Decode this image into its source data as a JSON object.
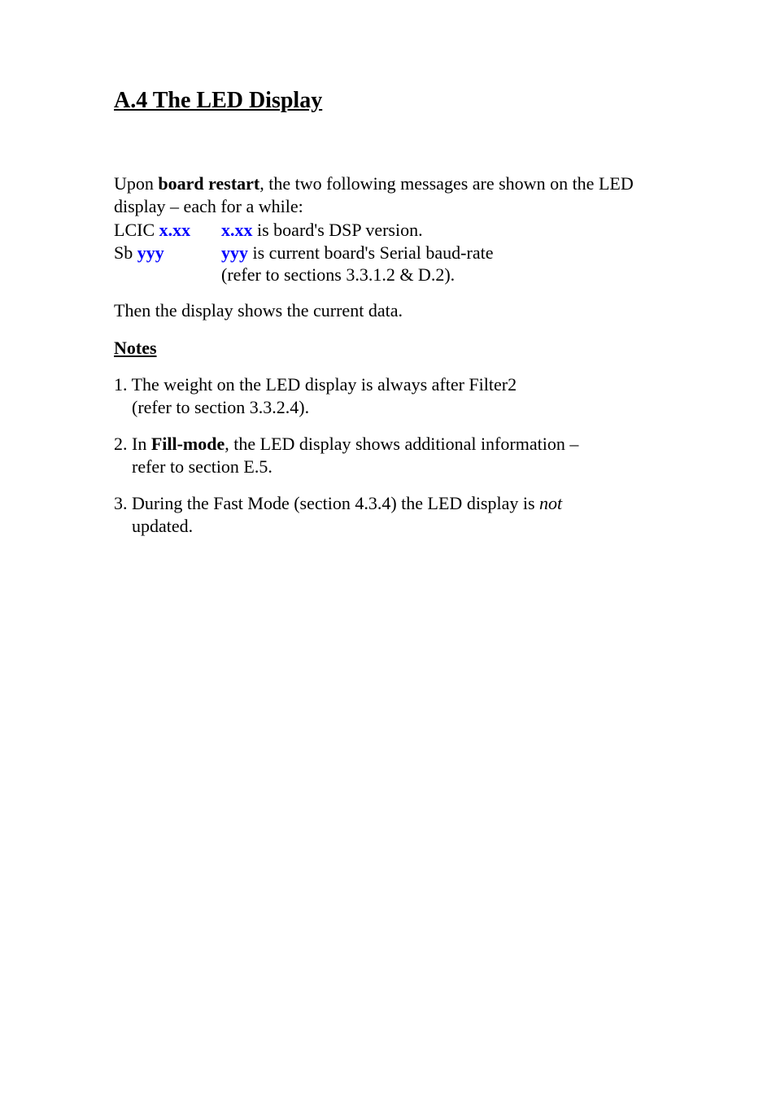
{
  "section_title": "A.4 The LED Display",
  "intro_pre": "Upon ",
  "intro_bold": "board restart",
  "intro_post": ", the two following messages are shown on the LED display – each for a while:",
  "msg1": {
    "left_prefix": "LCIC ",
    "left_var": "x.xx",
    "right_var": "x.xx",
    "right_text": " is board's DSP version."
  },
  "msg2": {
    "left_prefix": "Sb ",
    "left_var": "yyy",
    "right_var": "yyy",
    "right_text": " is current board's Serial baud-rate",
    "right_text2": "(refer to sections 3.3.1.2 & D.2)."
  },
  "then_sentence": "Then the display shows the current data.",
  "notes_heading": "Notes",
  "note1_a": "1. The weight on the LED display is always after Filter2",
  "note1_b": "(refer to section 3.3.2.4).",
  "note2_a": "2. In ",
  "note2_bold": "Fill-mode",
  "note2_b": ", the LED display shows additional information –",
  "note2_c": "refer to section E.5.",
  "note3_a": "3. During the Fast Mode (section 4.3.4) the LED display is ",
  "note3_italic": "not",
  "note3_b": "updated.",
  "colors": {
    "link_blue": "#0000ff",
    "text_black": "#000000",
    "background": "#ffffff"
  },
  "typography": {
    "title_fontsize": 28,
    "body_fontsize": 22,
    "font_family": "Times New Roman"
  }
}
